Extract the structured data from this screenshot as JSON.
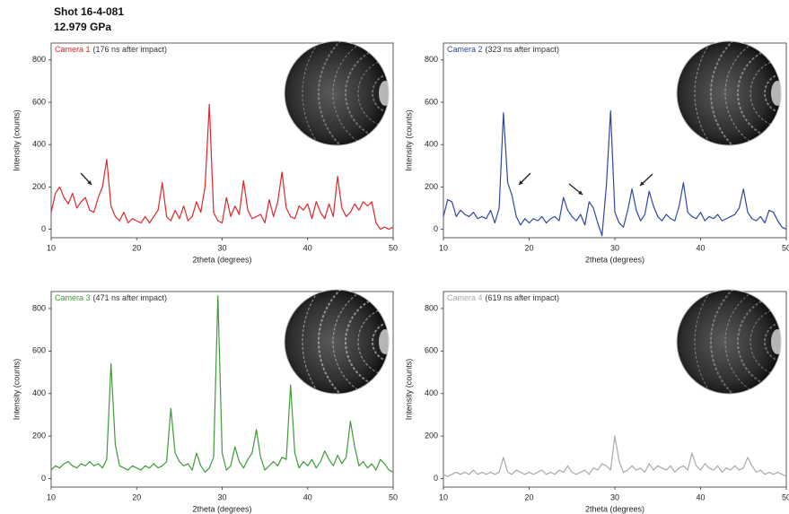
{
  "header": {
    "shot": "Shot 16-4-081",
    "pressure": "12.979 GPa"
  },
  "chart_data": [
    {
      "type": "line",
      "title": "Camera 1",
      "subtitle": "(176 ns after impact)",
      "color": "#e0262b",
      "x_label": "2theta (degrees)",
      "y_label": "Intensity (counts)",
      "xlim": [
        10,
        50
      ],
      "ylim": [
        -40,
        880
      ],
      "xticks": [
        10,
        20,
        30,
        40,
        50
      ],
      "yticks": [
        0,
        200,
        400,
        600,
        800
      ],
      "x": [
        10,
        10.5,
        11,
        11.5,
        12,
        12.5,
        13,
        13.5,
        14,
        14.5,
        15,
        15.5,
        16,
        16.5,
        17,
        17.5,
        18,
        18.5,
        19,
        19.5,
        20,
        20.5,
        21,
        21.5,
        22,
        22.5,
        23,
        23.5,
        24,
        24.5,
        25,
        25.5,
        26,
        26.5,
        27,
        27.5,
        28,
        28.5,
        29,
        29.5,
        30,
        30.5,
        31,
        31.5,
        32,
        32.5,
        33,
        33.5,
        34,
        34.5,
        35,
        35.5,
        36,
        36.5,
        37,
        37.5,
        38,
        38.5,
        39,
        39.5,
        40,
        40.5,
        41,
        41.5,
        42,
        42.5,
        43,
        43.5,
        44,
        44.5,
        45,
        45.5,
        46,
        46.5,
        47,
        47.5,
        48,
        48.5,
        49,
        49.5,
        50
      ],
      "values": [
        80,
        170,
        200,
        150,
        120,
        170,
        100,
        130,
        150,
        90,
        80,
        150,
        200,
        330,
        110,
        60,
        40,
        80,
        30,
        50,
        40,
        30,
        60,
        30,
        60,
        90,
        220,
        60,
        40,
        90,
        50,
        110,
        40,
        60,
        130,
        80,
        200,
        590,
        80,
        40,
        30,
        150,
        60,
        110,
        70,
        230,
        90,
        50,
        60,
        70,
        30,
        140,
        60,
        130,
        270,
        100,
        60,
        50,
        110,
        90,
        120,
        50,
        130,
        80,
        50,
        120,
        60,
        250,
        100,
        60,
        80,
        120,
        90,
        130,
        110,
        130,
        30,
        0,
        10,
        0,
        10
      ]
    },
    {
      "type": "line",
      "title": "Camera 2",
      "subtitle": "(323 ns after impact)",
      "color": "#3047a0",
      "x_label": "2theta (degrees)",
      "y_label": "Intensity (counts)",
      "xlim": [
        10,
        50
      ],
      "ylim": [
        -40,
        880
      ],
      "xticks": [
        10,
        20,
        30,
        40,
        50
      ],
      "yticks": [
        0,
        200,
        400,
        600,
        800
      ],
      "x": [
        10,
        10.5,
        11,
        11.5,
        12,
        12.5,
        13,
        13.5,
        14,
        14.5,
        15,
        15.5,
        16,
        16.5,
        17,
        17.5,
        18,
        18.5,
        19,
        19.5,
        20,
        20.5,
        21,
        21.5,
        22,
        22.5,
        23,
        23.5,
        24,
        24.5,
        25,
        25.5,
        26,
        26.5,
        27,
        27.5,
        28,
        28.5,
        29,
        29.5,
        30,
        30.5,
        31,
        31.5,
        32,
        32.5,
        33,
        33.5,
        34,
        34.5,
        35,
        35.5,
        36,
        36.5,
        37,
        37.5,
        38,
        38.5,
        39,
        39.5,
        40,
        40.5,
        41,
        41.5,
        42,
        42.5,
        43,
        43.5,
        44,
        44.5,
        45,
        45.5,
        46,
        46.5,
        47,
        47.5,
        48,
        48.5,
        49,
        49.5,
        50
      ],
      "values": [
        60,
        140,
        130,
        60,
        90,
        70,
        60,
        80,
        50,
        60,
        50,
        90,
        30,
        100,
        550,
        220,
        160,
        60,
        20,
        50,
        30,
        50,
        40,
        60,
        30,
        50,
        60,
        40,
        150,
        90,
        60,
        40,
        70,
        20,
        130,
        100,
        30,
        -30,
        200,
        560,
        80,
        30,
        10,
        90,
        190,
        90,
        40,
        70,
        180,
        110,
        60,
        40,
        70,
        50,
        40,
        110,
        220,
        80,
        60,
        50,
        80,
        40,
        60,
        50,
        70,
        40,
        50,
        60,
        70,
        100,
        190,
        80,
        50,
        40,
        60,
        30,
        90,
        80,
        40,
        10,
        0
      ]
    },
    {
      "type": "line",
      "title": "Camera 3",
      "subtitle": "(471 ns after impact)",
      "color": "#3f9a3a",
      "x_label": "2theta (degrees)",
      "y_label": "Intensity (counts)",
      "xlim": [
        10,
        50
      ],
      "ylim": [
        -40,
        880
      ],
      "xticks": [
        10,
        20,
        30,
        40,
        50
      ],
      "yticks": [
        0,
        200,
        400,
        600,
        800
      ],
      "x": [
        10,
        10.5,
        11,
        11.5,
        12,
        12.5,
        13,
        13.5,
        14,
        14.5,
        15,
        15.5,
        16,
        16.5,
        17,
        17.5,
        18,
        18.5,
        19,
        19.5,
        20,
        20.5,
        21,
        21.5,
        22,
        22.5,
        23,
        23.5,
        24,
        24.5,
        25,
        25.5,
        26,
        26.5,
        27,
        27.5,
        28,
        28.5,
        29,
        29.5,
        30,
        30.5,
        31,
        31.5,
        32,
        32.5,
        33,
        33.5,
        34,
        34.5,
        35,
        35.5,
        36,
        36.5,
        37,
        37.5,
        38,
        38.5,
        39,
        39.5,
        40,
        40.5,
        41,
        41.5,
        42,
        42.5,
        43,
        43.5,
        44,
        44.5,
        45,
        45.5,
        46,
        46.5,
        47,
        47.5,
        48,
        48.5,
        49,
        49.5,
        50
      ],
      "values": [
        40,
        60,
        50,
        70,
        80,
        60,
        50,
        70,
        60,
        80,
        60,
        70,
        50,
        90,
        540,
        160,
        60,
        50,
        40,
        60,
        50,
        40,
        60,
        50,
        70,
        50,
        60,
        80,
        330,
        120,
        80,
        60,
        70,
        40,
        120,
        60,
        30,
        50,
        100,
        860,
        120,
        40,
        60,
        150,
        80,
        50,
        90,
        120,
        230,
        100,
        40,
        60,
        80,
        60,
        100,
        90,
        440,
        120,
        50,
        80,
        60,
        90,
        50,
        80,
        130,
        90,
        60,
        110,
        70,
        100,
        270,
        150,
        60,
        80,
        50,
        70,
        40,
        90,
        70,
        40,
        30
      ]
    },
    {
      "type": "line",
      "title": "Camera 4",
      "subtitle": "(619 ns after impact)",
      "color": "#aaaaaa",
      "x_label": "2theta (degrees)",
      "y_label": "Intensity (counts)",
      "xlim": [
        10,
        50
      ],
      "ylim": [
        -40,
        880
      ],
      "xticks": [
        10,
        20,
        30,
        40,
        50
      ],
      "yticks": [
        0,
        200,
        400,
        600,
        800
      ],
      "x": [
        10,
        10.5,
        11,
        11.5,
        12,
        12.5,
        13,
        13.5,
        14,
        14.5,
        15,
        15.5,
        16,
        16.5,
        17,
        17.5,
        18,
        18.5,
        19,
        19.5,
        20,
        20.5,
        21,
        21.5,
        22,
        22.5,
        23,
        23.5,
        24,
        24.5,
        25,
        25.5,
        26,
        26.5,
        27,
        27.5,
        28,
        28.5,
        29,
        29.5,
        30,
        30.5,
        31,
        31.5,
        32,
        32.5,
        33,
        33.5,
        34,
        34.5,
        35,
        35.5,
        36,
        36.5,
        37,
        37.5,
        38,
        38.5,
        39,
        39.5,
        40,
        40.5,
        41,
        41.5,
        42,
        42.5,
        43,
        43.5,
        44,
        44.5,
        45,
        45.5,
        46,
        46.5,
        47,
        47.5,
        48,
        48.5,
        49,
        49.5,
        50
      ],
      "values": [
        20,
        10,
        20,
        30,
        20,
        30,
        20,
        40,
        20,
        30,
        20,
        30,
        20,
        30,
        100,
        30,
        20,
        40,
        30,
        20,
        30,
        20,
        30,
        40,
        20,
        30,
        20,
        40,
        30,
        60,
        30,
        20,
        30,
        40,
        20,
        50,
        40,
        70,
        60,
        40,
        200,
        80,
        30,
        40,
        60,
        40,
        50,
        30,
        70,
        40,
        60,
        50,
        40,
        60,
        30,
        50,
        60,
        40,
        120,
        60,
        40,
        70,
        50,
        40,
        60,
        30,
        50,
        40,
        60,
        40,
        50,
        100,
        60,
        30,
        40,
        20,
        30,
        20,
        30,
        20,
        10
      ]
    }
  ]
}
